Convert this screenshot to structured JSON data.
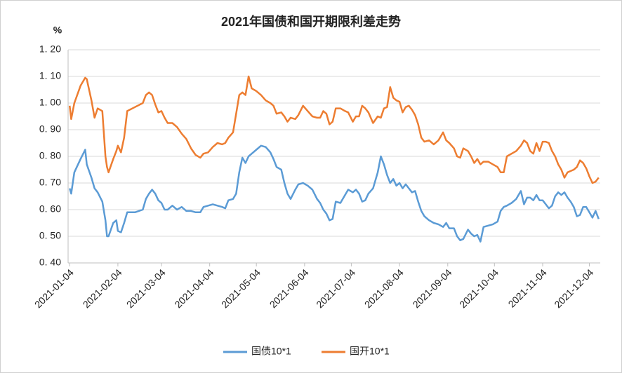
{
  "chart_data": {
    "type": "line",
    "title": "2021年国债和国开期限利差走势",
    "y_unit": "%",
    "x": [
      "2021-01-04",
      "2021-01-05",
      "2021-01-07",
      "2021-01-11",
      "2021-01-14",
      "2021-01-15",
      "2021-01-18",
      "2021-01-20",
      "2021-01-22",
      "2021-01-25",
      "2021-01-27",
      "2021-01-28",
      "2021-01-29",
      "2021-02-01",
      "2021-02-03",
      "2021-02-04",
      "2021-02-06",
      "2021-02-08",
      "2021-02-10",
      "2021-02-15",
      "2021-02-20",
      "2021-02-22",
      "2021-02-24",
      "2021-02-26",
      "2021-02-28",
      "2021-03-02",
      "2021-03-04",
      "2021-03-06",
      "2021-03-08",
      "2021-03-11",
      "2021-03-14",
      "2021-03-17",
      "2021-03-20",
      "2021-03-23",
      "2021-03-26",
      "2021-03-29",
      "2021-03-31",
      "2021-04-03",
      "2021-04-06",
      "2021-04-09",
      "2021-04-12",
      "2021-04-14",
      "2021-04-16",
      "2021-04-19",
      "2021-04-21",
      "2021-04-23",
      "2021-04-25",
      "2021-04-27",
      "2021-04-29",
      "2021-05-01",
      "2021-05-04",
      "2021-05-07",
      "2021-05-10",
      "2021-05-13",
      "2021-05-15",
      "2021-05-17",
      "2021-05-20",
      "2021-05-22",
      "2021-05-24",
      "2021-05-26",
      "2021-05-29",
      "2021-05-31",
      "2021-06-03",
      "2021-06-06",
      "2021-06-09",
      "2021-06-12",
      "2021-06-14",
      "2021-06-16",
      "2021-06-18",
      "2021-06-20",
      "2021-06-22",
      "2021-06-24",
      "2021-06-27",
      "2021-06-30",
      "2021-07-02",
      "2021-07-05",
      "2021-07-07",
      "2021-07-09",
      "2021-07-11",
      "2021-07-13",
      "2021-07-15",
      "2021-07-18",
      "2021-07-21",
      "2021-07-23",
      "2021-07-25",
      "2021-07-27",
      "2021-07-29",
      "2021-07-31",
      "2021-08-02",
      "2021-08-04",
      "2021-08-06",
      "2021-08-08",
      "2021-08-10",
      "2021-08-12",
      "2021-08-14",
      "2021-08-16",
      "2021-08-18",
      "2021-08-20",
      "2021-08-23",
      "2021-08-26",
      "2021-08-29",
      "2021-09-01",
      "2021-09-03",
      "2021-09-05",
      "2021-09-08",
      "2021-09-10",
      "2021-09-12",
      "2021-09-14",
      "2021-09-17",
      "2021-09-19",
      "2021-09-21",
      "2021-09-23",
      "2021-09-25",
      "2021-09-27",
      "2021-09-30",
      "2021-10-03",
      "2021-10-06",
      "2021-10-08",
      "2021-10-10",
      "2021-10-12",
      "2021-10-15",
      "2021-10-18",
      "2021-10-21",
      "2021-10-23",
      "2021-10-25",
      "2021-10-27",
      "2021-10-29",
      "2021-10-31",
      "2021-11-02",
      "2021-11-04",
      "2021-11-06",
      "2021-11-08",
      "2021-11-10",
      "2021-11-12",
      "2021-11-14",
      "2021-11-16",
      "2021-11-18",
      "2021-11-20",
      "2021-11-22",
      "2021-11-24",
      "2021-11-26",
      "2021-11-28",
      "2021-11-30",
      "2021-12-02",
      "2021-12-04",
      "2021-12-06",
      "2021-12-08",
      "2021-12-10"
    ],
    "series": [
      {
        "name": "国债10*1",
        "color": "#5b9bd5",
        "values": [
          0.68,
          0.66,
          0.74,
          0.79,
          0.825,
          0.77,
          0.72,
          0.68,
          0.665,
          0.63,
          0.56,
          0.5,
          0.5,
          0.55,
          0.56,
          0.52,
          0.515,
          0.55,
          0.59,
          0.59,
          0.6,
          0.64,
          0.66,
          0.675,
          0.66,
          0.635,
          0.625,
          0.6,
          0.6,
          0.615,
          0.6,
          0.61,
          0.595,
          0.595,
          0.59,
          0.59,
          0.61,
          0.615,
          0.62,
          0.615,
          0.61,
          0.605,
          0.635,
          0.64,
          0.66,
          0.74,
          0.795,
          0.775,
          0.8,
          0.81,
          0.825,
          0.84,
          0.835,
          0.815,
          0.79,
          0.76,
          0.75,
          0.7,
          0.66,
          0.64,
          0.675,
          0.695,
          0.7,
          0.69,
          0.675,
          0.64,
          0.625,
          0.6,
          0.585,
          0.56,
          0.565,
          0.63,
          0.625,
          0.655,
          0.675,
          0.665,
          0.675,
          0.66,
          0.63,
          0.635,
          0.66,
          0.68,
          0.74,
          0.8,
          0.77,
          0.73,
          0.7,
          0.715,
          0.69,
          0.7,
          0.68,
          0.695,
          0.68,
          0.665,
          0.67,
          0.63,
          0.595,
          0.575,
          0.56,
          0.55,
          0.545,
          0.535,
          0.55,
          0.53,
          0.53,
          0.5,
          0.485,
          0.49,
          0.525,
          0.51,
          0.5,
          0.505,
          0.48,
          0.535,
          0.54,
          0.545,
          0.555,
          0.595,
          0.61,
          0.615,
          0.625,
          0.64,
          0.67,
          0.62,
          0.645,
          0.645,
          0.635,
          0.655,
          0.635,
          0.635,
          0.62,
          0.605,
          0.615,
          0.65,
          0.665,
          0.655,
          0.665,
          0.645,
          0.63,
          0.61,
          0.575,
          0.58,
          0.61,
          0.61,
          0.59,
          0.57,
          0.595,
          0.565
        ]
      },
      {
        "name": "国开10*1",
        "color": "#ed7d31",
        "values": [
          0.99,
          0.94,
          1.0,
          1.065,
          1.095,
          1.09,
          1.01,
          0.945,
          0.98,
          0.97,
          0.8,
          0.76,
          0.74,
          0.79,
          0.82,
          0.84,
          0.815,
          0.87,
          0.97,
          0.985,
          1.0,
          1.03,
          1.04,
          1.03,
          0.995,
          0.965,
          0.97,
          0.945,
          0.925,
          0.925,
          0.91,
          0.885,
          0.865,
          0.83,
          0.805,
          0.795,
          0.81,
          0.815,
          0.835,
          0.85,
          0.845,
          0.85,
          0.87,
          0.89,
          0.96,
          1.03,
          1.04,
          1.03,
          1.1,
          1.055,
          1.045,
          1.03,
          1.01,
          1.0,
          0.99,
          0.96,
          0.965,
          0.95,
          0.93,
          0.945,
          0.94,
          0.955,
          0.99,
          0.97,
          0.95,
          0.945,
          0.945,
          0.97,
          0.96,
          0.92,
          0.93,
          0.98,
          0.98,
          0.97,
          0.965,
          0.93,
          0.95,
          0.95,
          0.99,
          0.98,
          0.965,
          0.925,
          0.95,
          0.945,
          0.98,
          0.985,
          1.06,
          1.02,
          1.01,
          1.005,
          0.965,
          0.985,
          0.99,
          0.975,
          0.955,
          0.92,
          0.87,
          0.855,
          0.86,
          0.845,
          0.86,
          0.89,
          0.86,
          0.85,
          0.83,
          0.8,
          0.795,
          0.83,
          0.82,
          0.8,
          0.775,
          0.79,
          0.77,
          0.78,
          0.78,
          0.77,
          0.76,
          0.74,
          0.74,
          0.8,
          0.81,
          0.82,
          0.84,
          0.86,
          0.85,
          0.82,
          0.81,
          0.85,
          0.82,
          0.855,
          0.855,
          0.85,
          0.82,
          0.8,
          0.77,
          0.75,
          0.72,
          0.74,
          0.745,
          0.75,
          0.76,
          0.785,
          0.775,
          0.755,
          0.725,
          0.7,
          0.705,
          0.72
        ]
      }
    ],
    "xlim": [
      "2021-01-03",
      "2021-12-11"
    ],
    "xticks": [
      "2021-01-04",
      "2021-02-04",
      "2021-03-04",
      "2021-04-04",
      "2021-05-04",
      "2021-06-04",
      "2021-07-04",
      "2021-08-04",
      "2021-09-04",
      "2021-10-04",
      "2021-11-04",
      "2021-12-04"
    ],
    "ylim": [
      0.4,
      1.2
    ],
    "yticks": [
      {
        "value": 0.4,
        "label": "0. 40"
      },
      {
        "value": 0.5,
        "label": "0. 50"
      },
      {
        "value": 0.6,
        "label": "0. 60"
      },
      {
        "value": 0.7,
        "label": "0. 70"
      },
      {
        "value": 0.8,
        "label": "0. 80"
      },
      {
        "value": 0.9,
        "label": "0. 90"
      },
      {
        "value": 1.0,
        "label": "1. 00"
      },
      {
        "value": 1.1,
        "label": "1. 10"
      },
      {
        "value": 1.2,
        "label": "1. 20"
      }
    ],
    "grid": true,
    "legend": "bottom"
  }
}
